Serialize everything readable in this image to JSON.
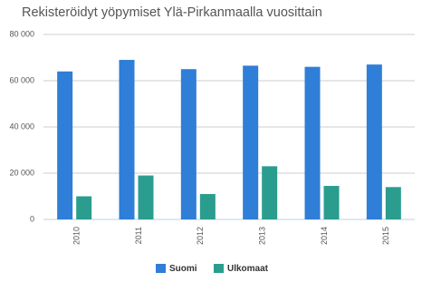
{
  "chart_data": {
    "type": "bar",
    "title": "Rekisteröidyt yöpymiset Ylä-Pirkanmaalla vuosittain",
    "categories": [
      "2010",
      "2011",
      "2012",
      "2013",
      "2014",
      "2015"
    ],
    "series": [
      {
        "name": "Suomi",
        "color": "#2f7ed8",
        "values": [
          64000,
          69000,
          65000,
          66500,
          66000,
          67000
        ]
      },
      {
        "name": "Ulkomaat",
        "color": "#2a9d8f",
        "values": [
          10000,
          19000,
          11000,
          23000,
          14500,
          14000
        ]
      }
    ],
    "ylim": [
      0,
      80000
    ],
    "yticks": [
      0,
      {
        "value": 20000,
        "label": "20 000"
      },
      {
        "value": 40000,
        "label": "40 000"
      },
      {
        "value": 60000,
        "label": "60 000"
      },
      {
        "value": 80000,
        "label": "80 000"
      }
    ],
    "grid": true
  }
}
